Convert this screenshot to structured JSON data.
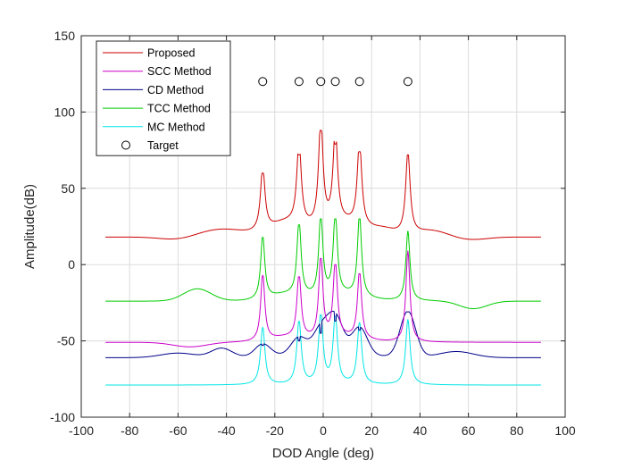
{
  "chart_data": {
    "type": "line",
    "title": "",
    "xlabel": "DOD Angle (deg)",
    "ylabel": "Amplitude(dB)",
    "xlim": [
      -100,
      100
    ],
    "ylim": [
      -100,
      150
    ],
    "xticks": [
      -100,
      -80,
      -60,
      -40,
      -20,
      0,
      20,
      40,
      60,
      80,
      100
    ],
    "yticks": [
      -100,
      -50,
      0,
      50,
      100,
      150
    ],
    "grid": true,
    "legend_position": "top-left",
    "x_range": [
      -90,
      90
    ],
    "peaks_deg": [
      -25,
      -10,
      -1,
      5,
      15,
      35
    ],
    "series": [
      {
        "name": "Proposed",
        "color": "#cc0000",
        "base": 18,
        "peak_heights": [
          60,
          72,
          88,
          79,
          74,
          72
        ],
        "notes": "baseline ~18 at edges, ~16 near ±60, rising to ~30 between peaks"
      },
      {
        "name": "SCC Method",
        "color": "#cc00cc",
        "base": -51,
        "peak_heights": [
          -7,
          -8,
          4,
          0,
          -6,
          9
        ],
        "notes": "baseline ~-51, dip ~-54 near -55"
      },
      {
        "name": "CD Method",
        "color": "#00008b",
        "base": -61,
        "peak_heights": [
          -53,
          -50,
          -45,
          -37,
          -43,
          -31
        ],
        "notes": "baseline ~-61, broad smooth lobes"
      },
      {
        "name": "TCC Method",
        "color": "#00cc00",
        "base": -24,
        "peak_heights": [
          18,
          26,
          30,
          30,
          30,
          22
        ],
        "notes": "baseline ~-24, bump ~-16 near -52, dip ~-29 near 62"
      },
      {
        "name": "MC Method",
        "color": "#00e5e5",
        "base": -79,
        "peak_heights": [
          -41,
          -37,
          -33,
          -34,
          -38,
          -36
        ],
        "notes": "baseline ~-79, sharp narrow peaks"
      },
      {
        "name": "Target",
        "type": "marker",
        "marker": "circle",
        "color": "#000000",
        "x": [
          -25,
          -10,
          -1,
          5,
          15,
          35
        ],
        "y": [
          120,
          120,
          120,
          120,
          120,
          120
        ]
      }
    ]
  }
}
